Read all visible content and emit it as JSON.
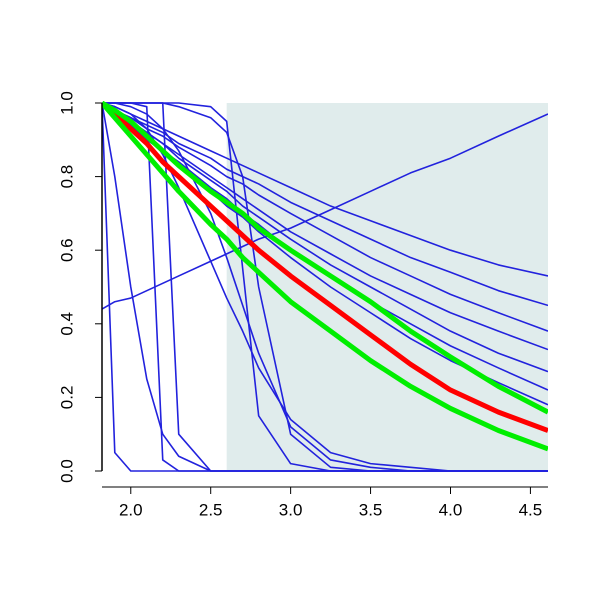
{
  "chart_data": {
    "type": "line",
    "xlim": [
      1.82,
      4.61
    ],
    "ylim": [
      0,
      1
    ],
    "xticks": [
      {
        "value": 2,
        "label": "2.0"
      },
      2.5,
      {
        "value": 3,
        "label": "3.0"
      },
      3.5,
      {
        "value": 4,
        "label": "4.0"
      },
      4.5
    ],
    "yticks": [
      {
        "value": 0,
        "label": "0.0"
      },
      0.2,
      0.4,
      0.6,
      0.8,
      {
        "value": 1,
        "label": "1.0"
      }
    ],
    "shade": {
      "xmin": 2.6,
      "color": "#e0ecec"
    },
    "x": [
      1.82,
      1.9,
      2.0,
      2.1,
      2.2,
      2.3,
      2.5,
      2.6,
      2.7,
      2.8,
      3.0,
      3.25,
      3.5,
      3.75,
      4.0,
      4.3,
      4.61
    ],
    "series": [
      {
        "color": "#2222dd",
        "width": 1.6,
        "values": [
          1,
          0.99,
          0.97,
          0.95,
          0.93,
          0.91,
          0.87,
          0.85,
          0.83,
          0.81,
          0.77,
          0.72,
          0.68,
          0.64,
          0.6,
          0.56,
          0.53
        ]
      },
      {
        "color": "#2222dd",
        "width": 1.6,
        "values": [
          1,
          0.98,
          0.96,
          0.94,
          0.92,
          0.89,
          0.85,
          0.82,
          0.8,
          0.78,
          0.73,
          0.68,
          0.63,
          0.58,
          0.54,
          0.49,
          0.45
        ]
      },
      {
        "color": "#2222dd",
        "width": 1.6,
        "values": [
          1,
          0.98,
          0.96,
          0.93,
          0.91,
          0.88,
          0.83,
          0.8,
          0.78,
          0.75,
          0.7,
          0.64,
          0.58,
          0.53,
          0.48,
          0.43,
          0.38
        ]
      },
      {
        "color": "#2222dd",
        "width": 1.6,
        "values": [
          1,
          0.98,
          0.95,
          0.92,
          0.89,
          0.86,
          0.8,
          0.77,
          0.74,
          0.71,
          0.65,
          0.59,
          0.53,
          0.48,
          0.43,
          0.38,
          0.33
        ]
      },
      {
        "color": "#2222dd",
        "width": 1.6,
        "values": [
          1,
          0.98,
          0.95,
          0.92,
          0.89,
          0.85,
          0.79,
          0.76,
          0.72,
          0.69,
          0.63,
          0.56,
          0.5,
          0.44,
          0.38,
          0.32,
          0.27
        ]
      },
      {
        "color": "#2222dd",
        "width": 1.6,
        "values": [
          1,
          0.97,
          0.94,
          0.91,
          0.87,
          0.84,
          0.77,
          0.74,
          0.7,
          0.67,
          0.6,
          0.53,
          0.46,
          0.4,
          0.34,
          0.28,
          0.22
        ]
      },
      {
        "color": "#2222dd",
        "width": 1.6,
        "values": [
          1,
          0.97,
          0.94,
          0.9,
          0.87,
          0.83,
          0.76,
          0.72,
          0.69,
          0.65,
          0.58,
          0.5,
          0.43,
          0.36,
          0.3,
          0.24,
          0.18
        ]
      },
      {
        "color": "#2222dd",
        "width": 1.6,
        "values": [
          0.44,
          0.46,
          0.47,
          0.49,
          0.51,
          0.53,
          0.57,
          0.59,
          0.61,
          0.63,
          0.66,
          0.71,
          0.76,
          0.81,
          0.85,
          0.91,
          0.97
        ]
      },
      {
        "color": "#2222dd",
        "width": 1.6,
        "values": [
          1,
          0.05,
          0,
          0,
          0,
          0,
          0,
          0,
          0,
          0,
          0,
          0,
          0,
          0,
          0,
          0,
          0
        ]
      },
      {
        "color": "#2222dd",
        "width": 1.6,
        "values": [
          1,
          0.8,
          0.5,
          0.25,
          0.1,
          0.04,
          0,
          0,
          0,
          0,
          0,
          0,
          0,
          0,
          0,
          0,
          0
        ]
      },
      {
        "color": "#2222dd",
        "width": 1.6,
        "values": [
          1,
          1,
          1,
          0.99,
          0.03,
          0,
          0,
          0,
          0,
          0,
          0,
          0,
          0,
          0,
          0,
          0,
          0
        ]
      },
      {
        "color": "#2222dd",
        "width": 1.6,
        "values": [
          1,
          1,
          1,
          1,
          1,
          0.1,
          0,
          0,
          0,
          0,
          0,
          0,
          0,
          0,
          0,
          0,
          0
        ]
      },
      {
        "color": "#2222dd",
        "width": 1.6,
        "values": [
          1,
          1,
          1,
          1,
          1,
          1,
          0.99,
          0.95,
          0.55,
          0.15,
          0.02,
          0,
          0,
          0,
          0,
          0,
          0
        ]
      },
      {
        "color": "#2222dd",
        "width": 1.6,
        "values": [
          1,
          1,
          1,
          1,
          1,
          0.99,
          0.96,
          0.92,
          0.8,
          0.5,
          0.1,
          0.01,
          0,
          0,
          0,
          0,
          0
        ]
      },
      {
        "color": "#2222dd",
        "width": 1.6,
        "values": [
          1,
          1,
          0.99,
          0.97,
          0.93,
          0.87,
          0.7,
          0.58,
          0.45,
          0.32,
          0.12,
          0.03,
          0.01,
          0,
          0,
          0,
          0
        ]
      },
      {
        "color": "#2222dd",
        "width": 1.6,
        "values": [
          1,
          0.99,
          0.97,
          0.93,
          0.86,
          0.77,
          0.57,
          0.47,
          0.38,
          0.28,
          0.14,
          0.05,
          0.02,
          0.01,
          0,
          0,
          0
        ]
      },
      {
        "color": "#ff0000",
        "width": 5,
        "values": [
          1,
          0.97,
          0.93,
          0.89,
          0.84,
          0.8,
          0.72,
          0.68,
          0.64,
          0.6,
          0.53,
          0.45,
          0.37,
          0.29,
          0.22,
          0.16,
          0.11
        ]
      },
      {
        "color": "#00ee00",
        "width": 5,
        "values": [
          1,
          0.98,
          0.95,
          0.91,
          0.87,
          0.83,
          0.76,
          0.73,
          0.7,
          0.66,
          0.6,
          0.53,
          0.46,
          0.38,
          0.31,
          0.23,
          0.16
        ]
      },
      {
        "color": "#00ee00",
        "width": 5,
        "values": [
          1,
          0.96,
          0.91,
          0.86,
          0.81,
          0.76,
          0.67,
          0.63,
          0.58,
          0.54,
          0.46,
          0.38,
          0.3,
          0.23,
          0.17,
          0.11,
          0.06
        ]
      }
    ]
  }
}
